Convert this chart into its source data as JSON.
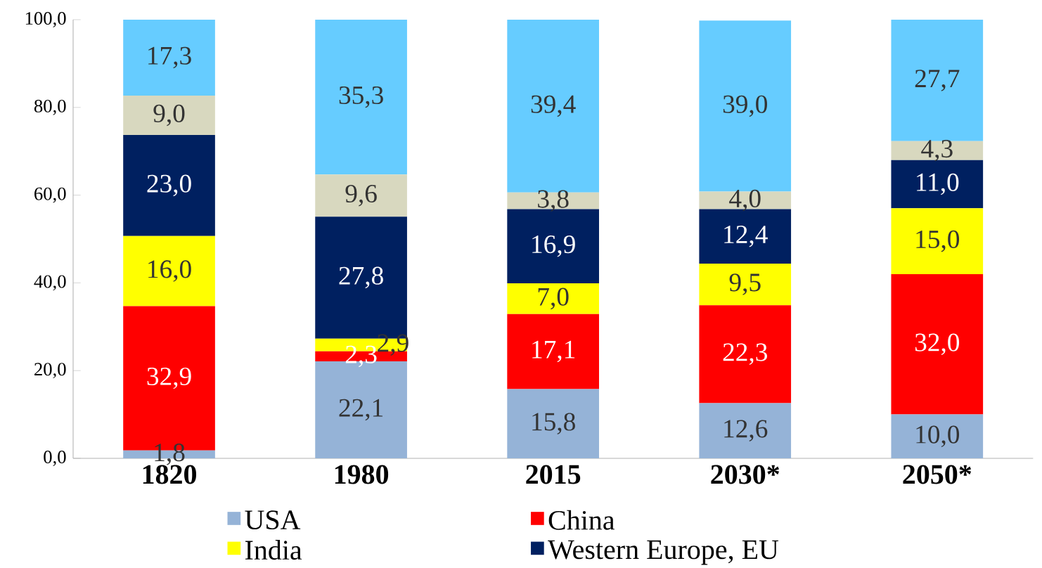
{
  "chart_data": {
    "type": "bar",
    "stacked": true,
    "categories": [
      "1820",
      "1980",
      "2015",
      "2030*",
      "2050*"
    ],
    "ylim": [
      0,
      100
    ],
    "yticks": [
      {
        "value": 0,
        "label": "0,0"
      },
      {
        "value": 20,
        "label": "20,0"
      },
      {
        "value": 40,
        "label": "40,0"
      },
      {
        "value": 60,
        "label": "60,0"
      },
      {
        "value": 80,
        "label": "80,0"
      },
      {
        "value": 100,
        "label": "100,0"
      }
    ],
    "legend": "bottom",
    "grid": false,
    "series": [
      {
        "name": "USA",
        "color": "#95b3d7",
        "values": [
          1.8,
          22.1,
          15.8,
          12.6,
          10.0
        ],
        "value_labels": [
          "1,8",
          "22,1",
          "15,8",
          "12,6",
          "10,0"
        ]
      },
      {
        "name": "China",
        "color": "#ff0000",
        "values": [
          32.9,
          2.3,
          17.1,
          22.3,
          32.0
        ],
        "value_labels": [
          "32,9",
          "2,3",
          "17,1",
          "22,3",
          "32,0"
        ]
      },
      {
        "name": "India",
        "color": "#ffff00",
        "values": [
          16.0,
          2.9,
          7.0,
          9.5,
          15.0
        ],
        "value_labels": [
          "16,0",
          "2,9",
          "7,0",
          "9,5",
          "15,0"
        ]
      },
      {
        "name": "Western Europe, EU",
        "color": "#002060",
        "values": [
          23.0,
          27.8,
          16.9,
          12.4,
          11.0
        ],
        "value_labels": [
          "23,0",
          "27,8",
          "16,9",
          "12,4",
          "11,0"
        ]
      },
      {
        "color": "#d8d8bf",
        "values": [
          9.0,
          9.6,
          3.8,
          4.0,
          4.3
        ],
        "value_labels": [
          "9,0",
          "9,6",
          "3,8",
          "4,0",
          "4,3"
        ]
      },
      {
        "color": "#66ccff",
        "values": [
          17.3,
          35.3,
          39.4,
          39.0,
          27.7
        ],
        "value_labels": [
          "17,3",
          "35,3",
          "39,4",
          "39,0",
          "27,7"
        ]
      }
    ]
  }
}
